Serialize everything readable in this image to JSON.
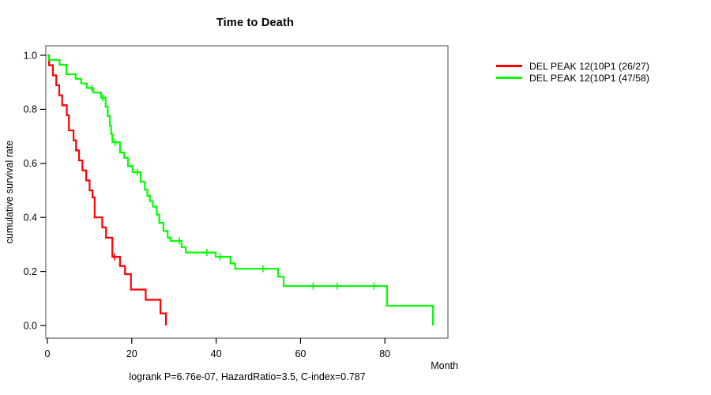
{
  "title": "Time to Death",
  "y_axis_label": "cumulative survival rate",
  "x_axis_label": "Month",
  "footer": "logrank P=6.76e-07, HazardRatio=3.5, C-index=0.787",
  "colors": {
    "series_red": "#ff0000",
    "series_green": "#00ff00",
    "frame": "#757575",
    "tick": "#000000"
  },
  "legend": {
    "items": [
      {
        "label": "DEL PEAK 12(10P1 (26/27)",
        "color": "#ff0000"
      },
      {
        "label": "DEL PEAK 12(10P1 (47/58)",
        "color": "#00ff00"
      }
    ]
  },
  "chart_data": {
    "type": "line",
    "subtype": "kaplan-meier-step",
    "title": "Time to Death",
    "xlabel": "Month",
    "ylabel": "cumulative survival rate",
    "xlim": [
      0,
      95
    ],
    "ylim": [
      0.0,
      1.0
    ],
    "x_ticks": [
      0,
      20,
      40,
      60,
      80
    ],
    "y_ticks": [
      0.0,
      0.2,
      0.4,
      0.6,
      0.8,
      1.0
    ],
    "grid": false,
    "legend_position": "right-outside",
    "annotation": "logrank P=6.76e-07, HazardRatio=3.5, C-index=0.787",
    "series": [
      {
        "name": "DEL PEAK 12(10P1 (26/27)",
        "color": "#ff0000",
        "events_total": "26/27",
        "steps": [
          [
            0,
            1.0
          ],
          [
            0.4,
            0.963
          ],
          [
            1.3,
            0.926
          ],
          [
            2.1,
            0.889
          ],
          [
            2.8,
            0.852
          ],
          [
            3.5,
            0.815
          ],
          [
            4.6,
            0.778
          ],
          [
            5.1,
            0.722
          ],
          [
            6.2,
            0.685
          ],
          [
            6.8,
            0.648
          ],
          [
            7.5,
            0.611
          ],
          [
            8.3,
            0.574
          ],
          [
            9.2,
            0.537
          ],
          [
            10.0,
            0.5
          ],
          [
            10.7,
            0.474
          ],
          [
            11.2,
            0.4
          ],
          [
            13.0,
            0.363
          ],
          [
            13.9,
            0.325
          ],
          [
            15.4,
            0.254
          ],
          [
            17.2,
            0.22
          ],
          [
            18.4,
            0.19
          ],
          [
            19.8,
            0.133
          ],
          [
            23.3,
            0.095
          ],
          [
            26.8,
            0.045
          ],
          [
            28.1,
            0.0
          ]
        ],
        "censor_marks": [
          [
            15.9,
            0.254
          ]
        ]
      },
      {
        "name": "DEL PEAK 12(10P1 (47/58)",
        "color": "#00ff00",
        "events_total": "47/58",
        "steps": [
          [
            0,
            1.0
          ],
          [
            0.3,
            0.983
          ],
          [
            2.9,
            0.965
          ],
          [
            4.5,
            0.93
          ],
          [
            6.7,
            0.913
          ],
          [
            8.0,
            0.896
          ],
          [
            9.3,
            0.879
          ],
          [
            10.9,
            0.862
          ],
          [
            12.7,
            0.843
          ],
          [
            13.8,
            0.81
          ],
          [
            14.3,
            0.775
          ],
          [
            14.8,
            0.74
          ],
          [
            15.1,
            0.708
          ],
          [
            15.4,
            0.678
          ],
          [
            17.2,
            0.64
          ],
          [
            18.2,
            0.62
          ],
          [
            19.1,
            0.59
          ],
          [
            20.2,
            0.567
          ],
          [
            22.1,
            0.532
          ],
          [
            23.1,
            0.503
          ],
          [
            23.7,
            0.48
          ],
          [
            24.3,
            0.46
          ],
          [
            25.0,
            0.44
          ],
          [
            25.9,
            0.41
          ],
          [
            26.5,
            0.38
          ],
          [
            27.5,
            0.35
          ],
          [
            28.5,
            0.325
          ],
          [
            29.2,
            0.313
          ],
          [
            31.8,
            0.29
          ],
          [
            32.8,
            0.27
          ],
          [
            39.9,
            0.254
          ],
          [
            43.4,
            0.23
          ],
          [
            44.5,
            0.21
          ],
          [
            54.7,
            0.18
          ],
          [
            56.0,
            0.146
          ],
          [
            80.5,
            0.073
          ],
          [
            91.4,
            0.0
          ]
        ],
        "censor_marks": [
          [
            10.5,
            0.879
          ],
          [
            13.1,
            0.843
          ],
          [
            16.0,
            0.678
          ],
          [
            21.3,
            0.567
          ],
          [
            31.3,
            0.313
          ],
          [
            37.8,
            0.27
          ],
          [
            40.9,
            0.254
          ],
          [
            51.1,
            0.21
          ],
          [
            63.0,
            0.146
          ],
          [
            68.7,
            0.146
          ],
          [
            77.4,
            0.146
          ]
        ]
      }
    ]
  }
}
